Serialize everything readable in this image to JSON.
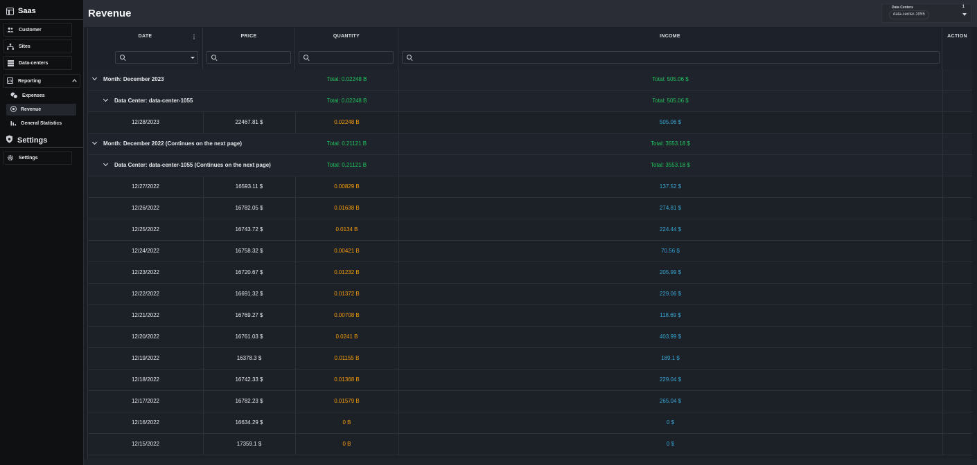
{
  "sidebar": {
    "brand": "Saas",
    "items": [
      {
        "label": "Customer",
        "icon": "users-icon"
      },
      {
        "label": "Sites",
        "icon": "sitemap-icon"
      },
      {
        "label": "Data-centers",
        "icon": "server-icon"
      }
    ],
    "reporting": {
      "label": "Reporting",
      "children": [
        {
          "label": "Expenses",
          "icon": "coins-icon"
        },
        {
          "label": "Revenue",
          "icon": "circle-dollar-icon"
        },
        {
          "label": "General Statistics",
          "icon": "bar-chart-icon"
        }
      ]
    },
    "settings_section": "Settings",
    "settings_item": "Settings"
  },
  "header": {
    "title": "Revenue",
    "filter_label": "Data Centers",
    "filter_count": "1",
    "filter_chip": "data-center-1055"
  },
  "columns": {
    "date": "DATE",
    "price": "PRICE",
    "quantity": "QUANTITY",
    "income": "INCOME",
    "action": "ACTION"
  },
  "groups": [
    {
      "level": 1,
      "label": "Month: December 2023",
      "qty_total": "Total: 0.02248 B",
      "income_total": "Total: 505.06 $"
    },
    {
      "level": 2,
      "label": "Data Center: data-center-1055",
      "qty_total": "Total: 0.02248 B",
      "income_total": "Total: 505.06 $"
    },
    {
      "level": 1,
      "label": "Month: December 2022 (Continues on the next page)",
      "qty_total": "Total: 0.21121 B",
      "income_total": "Total: 3553.18 $"
    },
    {
      "level": 2,
      "label": "Data Center: data-center-1055 (Continues on the next page)",
      "qty_total": "Total: 0.21121 B",
      "income_total": "Total: 3553.18 $"
    }
  ],
  "rows": [
    {
      "date": "12/28/2023",
      "price": "22467.81 $",
      "quantity": "0.02248 B",
      "income": "505.06 $"
    },
    {
      "date": "12/27/2022",
      "price": "16593.11 $",
      "quantity": "0.00829 B",
      "income": "137.52 $"
    },
    {
      "date": "12/26/2022",
      "price": "16782.05 $",
      "quantity": "0.01638 B",
      "income": "274.81 $"
    },
    {
      "date": "12/25/2022",
      "price": "16743.72 $",
      "quantity": "0.0134 B",
      "income": "224.44 $"
    },
    {
      "date": "12/24/2022",
      "price": "16758.32 $",
      "quantity": "0.00421 B",
      "income": "70.56 $"
    },
    {
      "date": "12/23/2022",
      "price": "16720.67 $",
      "quantity": "0.01232 B",
      "income": "205.99 $"
    },
    {
      "date": "12/22/2022",
      "price": "16691.32 $",
      "quantity": "0.01372 B",
      "income": "229.06 $"
    },
    {
      "date": "12/21/2022",
      "price": "16769.27 $",
      "quantity": "0.00708 B",
      "income": "118.69 $"
    },
    {
      "date": "12/20/2022",
      "price": "16761.03 $",
      "quantity": "0.0241 B",
      "income": "403.99 $"
    },
    {
      "date": "12/19/2022",
      "price": "16378.3 $",
      "quantity": "0.01155 B",
      "income": "189.1 $"
    },
    {
      "date": "12/18/2022",
      "price": "16742.33 $",
      "quantity": "0.01368 B",
      "income": "229.04 $"
    },
    {
      "date": "12/17/2022",
      "price": "16782.23 $",
      "quantity": "0.01579 B",
      "income": "265.04 $"
    },
    {
      "date": "12/16/2022",
      "price": "16634.29 $",
      "quantity": "0 B",
      "income": "0 $"
    },
    {
      "date": "12/15/2022",
      "price": "17359.1 $",
      "quantity": "0 B",
      "income": "0 $"
    }
  ],
  "colors": {
    "total": "#22c55e",
    "quantity": "#f59e0b",
    "income": "#38a7d6"
  }
}
